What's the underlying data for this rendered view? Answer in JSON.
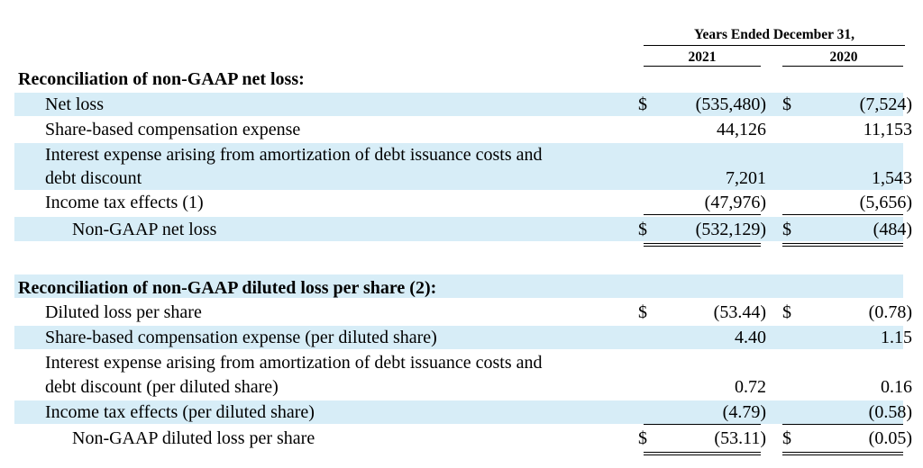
{
  "header": {
    "period": "Years Ended December 31,",
    "col1": "2021",
    "col2": "2020"
  },
  "section1": {
    "title": "Reconciliation of non-GAAP net loss:",
    "rows": [
      {
        "label": "Net loss",
        "cur1": "$",
        "v1": "(535,480)",
        "cur2": "$",
        "v2": "(7,524)"
      },
      {
        "label": "Share-based compensation expense",
        "cur1": "",
        "v1": "44,126",
        "cur2": "",
        "v2": "11,153"
      },
      {
        "label": "Interest expense arising from amortization of debt issuance costs and",
        "label2": "debt discount",
        "cur1": "",
        "v1": "7,201",
        "cur2": "",
        "v2": "1,543"
      },
      {
        "label": "Income tax effects (1)",
        "cur1": "",
        "v1": "(47,976)",
        "cur2": "",
        "v2": "(5,656)"
      },
      {
        "label": "Non-GAAP net loss",
        "cur1": "$",
        "v1": "(532,129)",
        "cur2": "$",
        "v2": "(484)"
      }
    ]
  },
  "section2": {
    "title": "Reconciliation of non-GAAP diluted loss per share (2):",
    "rows": [
      {
        "label": "Diluted loss per share",
        "cur1": "$",
        "v1": "(53.44)",
        "cur2": "$",
        "v2": "(0.78)"
      },
      {
        "label": "Share-based compensation expense (per diluted share)",
        "cur1": "",
        "v1": "4.40",
        "cur2": "",
        "v2": "1.15"
      },
      {
        "label": "Interest expense arising from amortization of debt issuance costs and",
        "label2": "debt discount (per diluted share)",
        "cur1": "",
        "v1": "0.72",
        "cur2": "",
        "v2": "0.16"
      },
      {
        "label": "Income tax effects (per diluted share)",
        "cur1": "",
        "v1": "(4.79)",
        "cur2": "",
        "v2": "(0.58)"
      },
      {
        "label": "Non-GAAP diluted loss per share",
        "cur1": "$",
        "v1": "(53.11)",
        "cur2": "$",
        "v2": "(0.05)"
      }
    ]
  }
}
